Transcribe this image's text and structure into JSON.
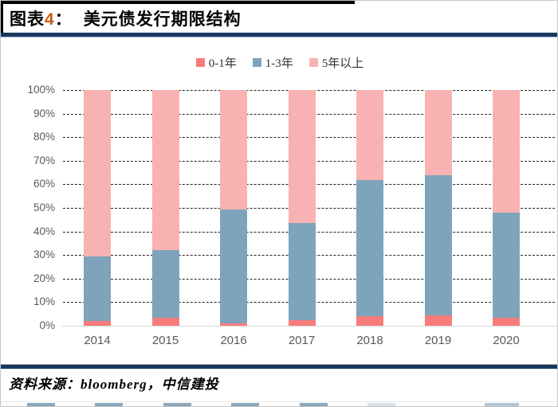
{
  "header": {
    "prefix": "图表",
    "number": "4",
    "separator": "：",
    "title": "美元债发行期限结构"
  },
  "colors": {
    "navy_rule": "#17375e",
    "navy_rule_light": "#9db3d1",
    "figure_number_orange": "#c55a11",
    "series_red": "#f87c7c",
    "series_blue": "#7ea4bb",
    "series_pink": "#f9b2b2",
    "tick_text": "#595959",
    "gridline": "#222222",
    "baseline": "#d9d9d9"
  },
  "chart_data": {
    "type": "bar",
    "stacked": true,
    "unit": "%",
    "title": "美元债发行期限结构",
    "categories": [
      "2014",
      "2015",
      "2016",
      "2017",
      "2018",
      "2019",
      "2020"
    ],
    "series": [
      {
        "name": "0-1年",
        "color": "#f87c7c",
        "values": [
          2,
          3.5,
          1,
          2.5,
          4,
          4.5,
          3.5
        ]
      },
      {
        "name": "1-3年",
        "color": "#7ea4bb",
        "values": [
          27.5,
          28.5,
          48.5,
          41,
          58,
          59.5,
          44.5
        ]
      },
      {
        "name": "5年以上",
        "color": "#f9b2b2",
        "values": [
          70.5,
          68,
          50.5,
          56.5,
          38,
          36,
          52
        ]
      }
    ],
    "ylim": [
      0,
      100
    ],
    "yticks": [
      "0%",
      "10%",
      "20%",
      "30%",
      "40%",
      "50%",
      "60%",
      "70%",
      "80%",
      "90%",
      "100%"
    ],
    "grid": "horizontal-dashed",
    "legend_position": "top-center"
  },
  "source": {
    "label": "资料来源：bloomberg，中信建投"
  },
  "bottom_strip": {
    "rects": [
      {
        "x": 33,
        "w": 35,
        "color": "#8ba7bd"
      },
      {
        "x": 118,
        "w": 35,
        "color": "#8ba7bd"
      },
      {
        "x": 204,
        "w": 35,
        "color": "#8ba7bd"
      },
      {
        "x": 289,
        "w": 35,
        "color": "#8ba7bd"
      },
      {
        "x": 375,
        "w": 35,
        "color": "#8ba7bd"
      },
      {
        "x": 460,
        "w": 35,
        "color": "#d9e1e8"
      },
      {
        "x": 607,
        "w": 43,
        "color": "#b3c4d2"
      }
    ]
  }
}
